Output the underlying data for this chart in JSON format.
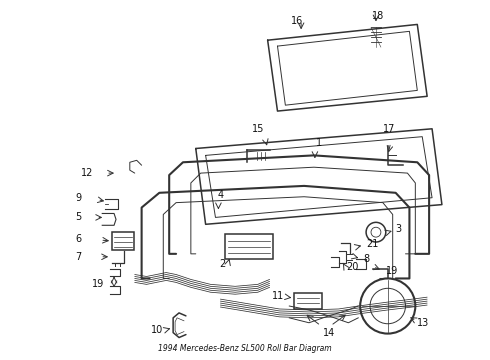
{
  "title": "1994 Mercedes-Benz SL500 Roll Bar Diagram",
  "bg_color": "#ffffff",
  "line_color": "#333333",
  "text_color": "#111111"
}
